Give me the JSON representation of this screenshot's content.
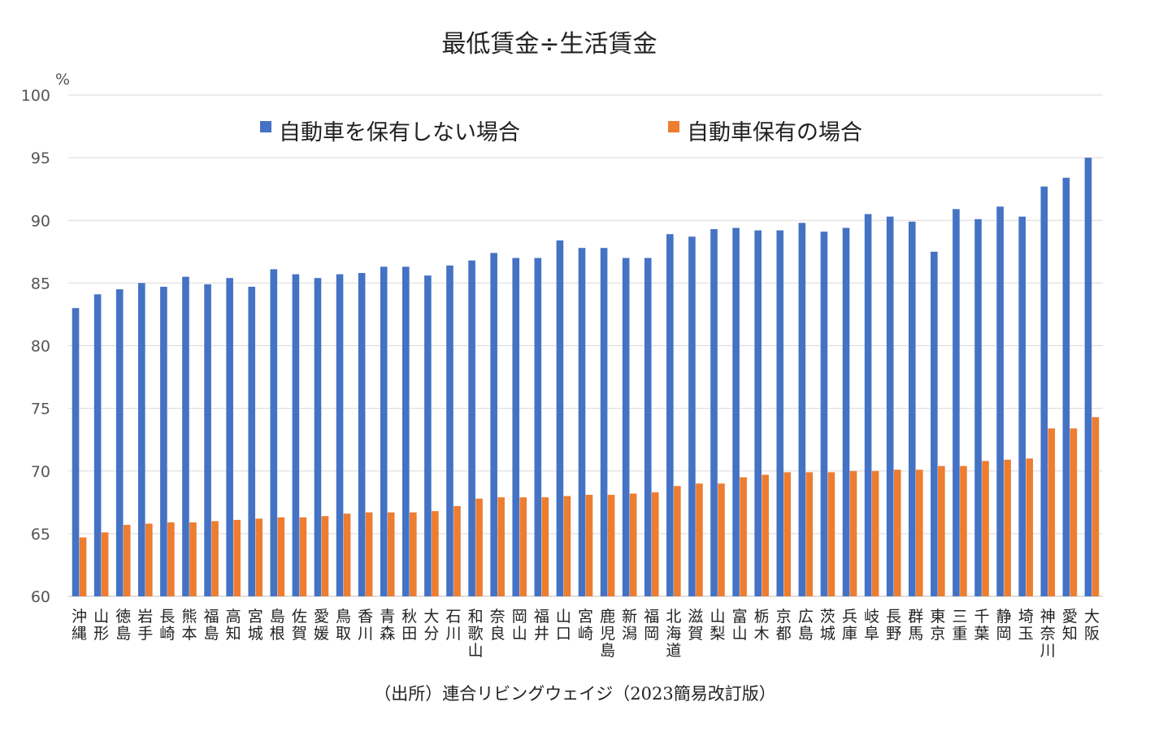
{
  "chart_data": {
    "type": "bar",
    "title": "最低賃金÷生活賃金",
    "unit": "%",
    "ylim": [
      60,
      100
    ],
    "yticks": [
      60,
      65,
      70,
      75,
      80,
      85,
      90,
      95,
      100
    ],
    "grid": true,
    "legend_position": "top",
    "categories": [
      "沖縄",
      "山形",
      "徳島",
      "岩手",
      "長崎",
      "熊本",
      "福島",
      "高知",
      "宮城",
      "島根",
      "佐賀",
      "愛媛",
      "鳥取",
      "香川",
      "青森",
      "秋田",
      "大分",
      "石川",
      "和歌山",
      "奈良",
      "岡山",
      "福井",
      "山口",
      "宮崎",
      "鹿児島",
      "新潟",
      "福岡",
      "北海道",
      "滋賀",
      "山梨",
      "富山",
      "栃木",
      "京都",
      "広島",
      "茨城",
      "兵庫",
      "岐阜",
      "長野",
      "群馬",
      "東京",
      "三重",
      "千葉",
      "静岡",
      "埼玉",
      "神奈川",
      "愛知",
      "大阪"
    ],
    "series": [
      {
        "name": "自動車を保有しない場合",
        "color": "#4472C4",
        "values": [
          83.0,
          84.1,
          84.5,
          85.0,
          84.7,
          85.5,
          84.9,
          85.4,
          84.7,
          86.1,
          85.7,
          85.4,
          85.7,
          85.8,
          86.3,
          86.3,
          85.6,
          86.4,
          86.8,
          87.4,
          87.0,
          87.0,
          88.4,
          87.8,
          87.8,
          87.0,
          87.0,
          88.9,
          88.7,
          89.3,
          89.4,
          89.2,
          89.2,
          89.8,
          89.1,
          89.4,
          90.5,
          90.3,
          89.9,
          87.5,
          90.9,
          90.1,
          91.1,
          90.3,
          92.7,
          93.4,
          95.0
        ]
      },
      {
        "name": "自動車保有の場合",
        "color": "#ED7D31",
        "values": [
          64.7,
          65.1,
          65.7,
          65.8,
          65.9,
          65.9,
          66.0,
          66.1,
          66.2,
          66.3,
          66.3,
          66.4,
          66.6,
          66.7,
          66.7,
          66.7,
          66.8,
          67.2,
          67.8,
          67.9,
          67.9,
          67.9,
          68.0,
          68.1,
          68.1,
          68.2,
          68.3,
          68.8,
          69.0,
          69.0,
          69.5,
          69.7,
          69.9,
          69.9,
          69.9,
          70.0,
          70.0,
          70.1,
          70.1,
          70.4,
          70.4,
          70.8,
          70.9,
          71.0,
          73.4,
          73.4,
          74.3
        ]
      }
    ]
  },
  "source": "（出所）連合リビングウェイジ（2023簡易改訂版）"
}
